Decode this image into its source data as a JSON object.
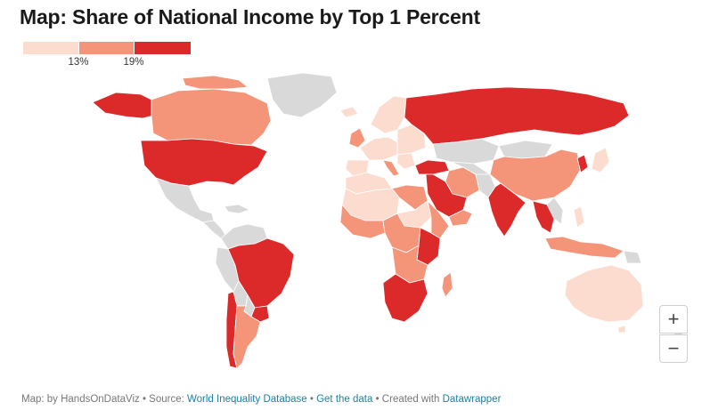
{
  "title": "Map: Share of National Income by Top 1 Percent",
  "legend": {
    "colors": [
      "#fcdccf",
      "#f4957a",
      "#dc2a2a"
    ],
    "thresholds": [
      "13%",
      "19%"
    ]
  },
  "colors": {
    "low": "#fcdccf",
    "mid": "#f4957a",
    "high": "#dc2a2a",
    "nodata": "#d9d9d9"
  },
  "zoom": {
    "in_label": "+",
    "out_label": "−"
  },
  "footer": {
    "prefix": "Map: by HandsOnDataViz • Source: ",
    "source_link": "World Inequality Database",
    "sep1": " • ",
    "data_link": "Get the data",
    "sep2": " • Created with ",
    "tool_link": "Datawrapper"
  }
}
